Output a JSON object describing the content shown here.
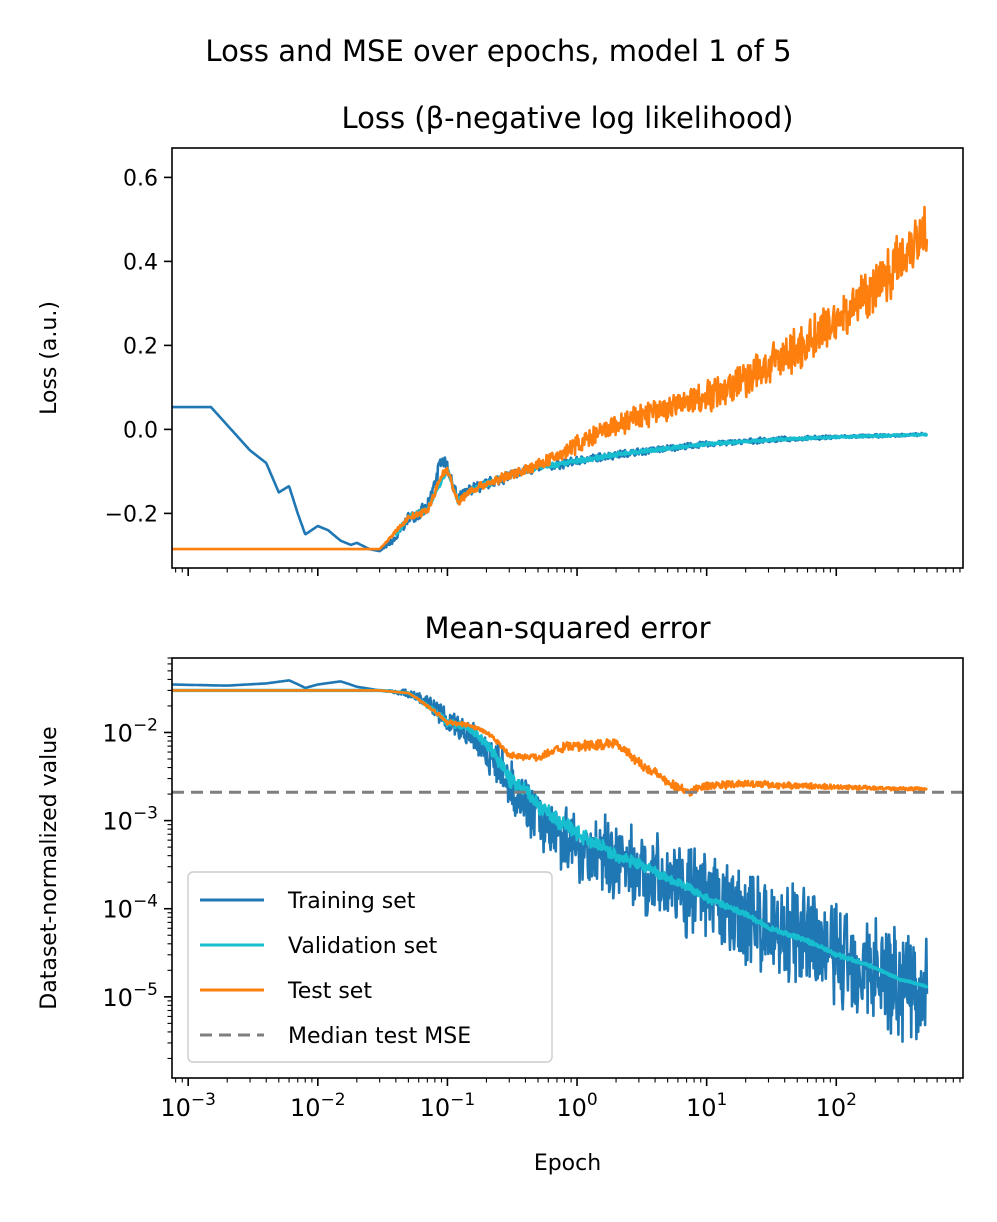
{
  "figure": {
    "suptitle": "Loss and MSE over epochs, model 1 of 5"
  },
  "chart_data": [
    {
      "type": "line",
      "title": "Loss (β-negative log likelihood)",
      "xlabel": "",
      "ylabel": "Loss (a.u.)",
      "xscale": "log",
      "xlim": [
        0.00075,
        950
      ],
      "ylim": [
        -0.33,
        0.67
      ],
      "yticks": [
        -0.2,
        0.0,
        0.2,
        0.4,
        0.6
      ],
      "ytick_labels": [
        "−0.2",
        "0.0",
        "0.2",
        "0.4",
        "0.6"
      ],
      "show_xtick_labels": false,
      "series": [
        {
          "name": "Training set",
          "color": "#1f77b4",
          "x": [
            0.00075,
            0.0015,
            0.003,
            0.004,
            0.005,
            0.006,
            0.007,
            0.008,
            0.01,
            0.012,
            0.015,
            0.018,
            0.02,
            0.025,
            0.03,
            0.04,
            0.05,
            0.07,
            0.09,
            0.1,
            0.12,
            0.15,
            0.2,
            0.3,
            0.5,
            0.7,
            1,
            2,
            5,
            10,
            30,
            100,
            300,
            500
          ],
          "y": [
            0.053,
            0.053,
            -0.05,
            -0.08,
            -0.15,
            -0.135,
            -0.2,
            -0.25,
            -0.23,
            -0.24,
            -0.265,
            -0.275,
            -0.27,
            -0.285,
            -0.29,
            -0.26,
            -0.21,
            -0.19,
            -0.07,
            -0.09,
            -0.17,
            -0.145,
            -0.13,
            -0.11,
            -0.09,
            -0.085,
            -0.075,
            -0.06,
            -0.045,
            -0.035,
            -0.025,
            -0.018,
            -0.014,
            -0.012
          ],
          "band_halfwidth": [
            0,
            0,
            0,
            0,
            0,
            0,
            0,
            0,
            0,
            0,
            0,
            0,
            0,
            0,
            0,
            0.012,
            0.015,
            0.02,
            0.02,
            0.02,
            0.018,
            0.018,
            0.016,
            0.016,
            0.014,
            0.012,
            0.012,
            0.011,
            0.009,
            0.008,
            0.007,
            0.005,
            0.004,
            0.004
          ]
        },
        {
          "name": "Validation set",
          "color": "#17becf",
          "x": [
            0.04,
            0.05,
            0.07,
            0.1,
            0.12,
            0.15,
            0.2,
            0.3,
            0.5,
            0.7,
            1,
            2,
            5,
            10,
            30,
            100,
            300,
            500
          ],
          "y": [
            -0.25,
            -0.21,
            -0.19,
            -0.095,
            -0.17,
            -0.145,
            -0.13,
            -0.11,
            -0.09,
            -0.085,
            -0.075,
            -0.06,
            -0.045,
            -0.035,
            -0.025,
            -0.018,
            -0.014,
            -0.012
          ],
          "band_halfwidth": [
            0.006,
            0.008,
            0.008,
            0.008,
            0.008,
            0.008,
            0.008,
            0.008,
            0.007,
            0.007,
            0.007,
            0.006,
            0.005,
            0.004,
            0.004,
            0.003,
            0.003,
            0.003
          ]
        },
        {
          "name": "Test set",
          "color": "#ff7f0e",
          "x": [
            0.00075,
            0.025,
            0.03,
            0.05,
            0.07,
            0.09,
            0.1,
            0.12,
            0.15,
            0.2,
            0.3,
            0.5,
            0.7,
            1,
            2,
            3,
            5,
            10,
            20,
            30,
            50,
            100,
            200,
            300,
            500
          ],
          "y": [
            -0.285,
            -0.285,
            -0.285,
            -0.21,
            -0.195,
            -0.11,
            -0.095,
            -0.175,
            -0.145,
            -0.13,
            -0.11,
            -0.085,
            -0.065,
            -0.035,
            0.01,
            0.03,
            0.05,
            0.08,
            0.12,
            0.15,
            0.19,
            0.26,
            0.34,
            0.4,
            0.49
          ],
          "band_halfwidth": [
            0,
            0,
            0,
            0.008,
            0.01,
            0.012,
            0.012,
            0.012,
            0.012,
            0.012,
            0.014,
            0.015,
            0.02,
            0.025,
            0.03,
            0.035,
            0.04,
            0.045,
            0.05,
            0.055,
            0.06,
            0.065,
            0.07,
            0.075,
            0.08
          ]
        }
      ]
    },
    {
      "type": "line",
      "title": "Mean-squared error",
      "xlabel": "Epoch",
      "ylabel": "Dataset-normalized value",
      "xscale": "log",
      "yscale": "log",
      "xlim": [
        0.00075,
        950
      ],
      "ylim": [
        1.2e-06,
        0.07
      ],
      "xticks": [
        0.001,
        0.01,
        0.1,
        1,
        10,
        100
      ],
      "xtick_labels": [
        {
          "base": "10",
          "exp": "−3"
        },
        {
          "base": "10",
          "exp": "−2"
        },
        {
          "base": "10",
          "exp": "−1"
        },
        {
          "base": "10",
          "exp": "0"
        },
        {
          "base": "10",
          "exp": "1"
        },
        {
          "base": "10",
          "exp": "2"
        }
      ],
      "yticks": [
        1e-05,
        0.0001,
        0.001,
        0.01
      ],
      "ytick_labels": [
        {
          "base": "10",
          "exp": "−5"
        },
        {
          "base": "10",
          "exp": "−4"
        },
        {
          "base": "10",
          "exp": "−3"
        },
        {
          "base": "10",
          "exp": "−2"
        }
      ],
      "series": [
        {
          "name": "Training set",
          "color": "#1f77b4",
          "x": [
            0.00075,
            0.002,
            0.004,
            0.006,
            0.008,
            0.01,
            0.015,
            0.02,
            0.03,
            0.05,
            0.07,
            0.1,
            0.15,
            0.2,
            0.3,
            0.5,
            0.7,
            1,
            2,
            5,
            10,
            30,
            100,
            300,
            500
          ],
          "y": [
            0.035,
            0.034,
            0.036,
            0.039,
            0.032,
            0.035,
            0.038,
            0.033,
            0.03,
            0.028,
            0.022,
            0.013,
            0.01,
            0.006,
            0.0025,
            0.001,
            0.0007,
            0.0005,
            0.00035,
            0.0002,
            0.00012,
            6e-05,
            3e-05,
            1.5e-05,
            1.2e-05
          ],
          "band_log_halfwidth": [
            0,
            0,
            0,
            0,
            0,
            0,
            0,
            0,
            0,
            0.05,
            0.1,
            0.15,
            0.2,
            0.25,
            0.3,
            0.35,
            0.4,
            0.45,
            0.5,
            0.55,
            0.6,
            0.65,
            0.7,
            0.75,
            0.75
          ]
        },
        {
          "name": "Validation set",
          "color": "#17becf",
          "x": [
            0.00075,
            0.01,
            0.03,
            0.05,
            0.07,
            0.1,
            0.15,
            0.2,
            0.3,
            0.5,
            0.7,
            1,
            2,
            5,
            10,
            30,
            100,
            300,
            500
          ],
          "y": [
            0.03,
            0.03,
            0.03,
            0.028,
            0.02,
            0.013,
            0.011,
            0.007,
            0.003,
            0.0015,
            0.001,
            0.0007,
            0.0004,
            0.00022,
            0.00013,
            6e-05,
            3e-05,
            1.6e-05,
            1.3e-05
          ],
          "band_log_halfwidth": [
            0,
            0,
            0,
            0,
            0.03,
            0.05,
            0.06,
            0.08,
            0.1,
            0.1,
            0.1,
            0.1,
            0.08,
            0.06,
            0.05,
            0.04,
            0.03,
            0.02,
            0.02
          ]
        },
        {
          "name": "Test set",
          "color": "#ff7f0e",
          "x": [
            0.00075,
            0.01,
            0.03,
            0.05,
            0.07,
            0.1,
            0.15,
            0.2,
            0.3,
            0.5,
            0.7,
            1,
            2,
            3,
            5,
            7,
            10,
            20,
            50,
            100,
            300,
            500
          ],
          "y": [
            0.03,
            0.03,
            0.03,
            0.028,
            0.02,
            0.013,
            0.012,
            0.01,
            0.0055,
            0.0052,
            0.0065,
            0.007,
            0.0075,
            0.0045,
            0.0027,
            0.0021,
            0.0025,
            0.0026,
            0.0025,
            0.0024,
            0.0023,
            0.0023
          ],
          "band_log_halfwidth": [
            0,
            0,
            0,
            0,
            0.02,
            0.03,
            0.03,
            0.03,
            0.04,
            0.05,
            0.06,
            0.07,
            0.07,
            0.07,
            0.07,
            0.06,
            0.05,
            0.05,
            0.04,
            0.03,
            0.02,
            0.02
          ]
        },
        {
          "name": "Median test MSE",
          "color": "#7f7f7f",
          "dashed": true,
          "y_constant": 0.0021
        }
      ],
      "legend": {
        "position": "lower-left",
        "entries": [
          "Training set",
          "Validation set",
          "Test set",
          "Median test MSE"
        ]
      }
    }
  ]
}
